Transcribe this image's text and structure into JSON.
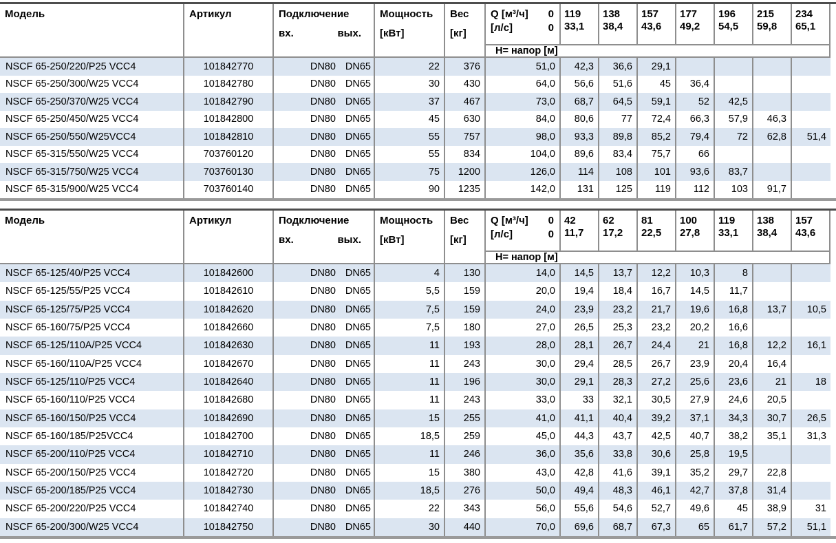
{
  "colors": {
    "row_alternate": "#dbe5f1",
    "grid_line": "#8e8e8e",
    "top_rule": "#4d4d4d",
    "bottom_rule": "#9a9a9a",
    "text": "#000000"
  },
  "tables": [
    {
      "columns": {
        "model": "Модель",
        "article": "Артикул",
        "connection": "Подключение",
        "connection_in": "вх.",
        "connection_out": "вых.",
        "power_line1": "Мощность",
        "power_line2": "[кВт]",
        "weight_line1": "Вес",
        "weight_line2": "[кг]",
        "q_row1_label": "Q [м³/ч]",
        "q_row1_value": "0",
        "q_row2_label": "[л/с]",
        "q_row2_value": "0",
        "head_band": "Н= напор [м]"
      },
      "flow_columns": [
        {
          "m3h": "119",
          "ls": "33,1"
        },
        {
          "m3h": "138",
          "ls": "38,4"
        },
        {
          "m3h": "157",
          "ls": "43,6"
        },
        {
          "m3h": "177",
          "ls": "49,2"
        },
        {
          "m3h": "196",
          "ls": "54,5"
        },
        {
          "m3h": "215",
          "ls": "59,8"
        },
        {
          "m3h": "234",
          "ls": "65,1"
        }
      ],
      "rows": [
        {
          "model": "NSCF 65-250/220/P25 VCC4",
          "article": "101842770",
          "dn_in": "DN80",
          "dn_out": "DN65",
          "power": "22",
          "weight": "376",
          "h_q0": "51,0",
          "h": [
            "42,3",
            "36,6",
            "29,1",
            "",
            "",
            "",
            ""
          ]
        },
        {
          "model": "NSCF 65-250/300/W25 VCC4",
          "article": "101842780",
          "dn_in": "DN80",
          "dn_out": "DN65",
          "power": "30",
          "weight": "430",
          "h_q0": "64,0",
          "h": [
            "56,6",
            "51,6",
            "45",
            "36,4",
            "",
            "",
            ""
          ]
        },
        {
          "model": "NSCF 65-250/370/W25 VCC4",
          "article": "101842790",
          "dn_in": "DN80",
          "dn_out": "DN65",
          "power": "37",
          "weight": "467",
          "h_q0": "73,0",
          "h": [
            "68,7",
            "64,5",
            "59,1",
            "52",
            "42,5",
            "",
            ""
          ]
        },
        {
          "model": "NSCF 65-250/450/W25 VCC4",
          "article": "101842800",
          "dn_in": "DN80",
          "dn_out": "DN65",
          "power": "45",
          "weight": "630",
          "h_q0": "84,0",
          "h": [
            "80,6",
            "77",
            "72,4",
            "66,3",
            "57,9",
            "46,3",
            ""
          ]
        },
        {
          "model": "NSCF 65-250/550/W25VCC4",
          "article": "101842810",
          "dn_in": "DN80",
          "dn_out": "DN65",
          "power": "55",
          "weight": "757",
          "h_q0": "98,0",
          "h": [
            "93,3",
            "89,8",
            "85,2",
            "79,4",
            "72",
            "62,8",
            "51,4"
          ]
        },
        {
          "model": "NSCF 65-315/550/W25 VCC4",
          "article": "703760120",
          "dn_in": "DN80",
          "dn_out": "DN65",
          "power": "55",
          "weight": "834",
          "h_q0": "104,0",
          "h": [
            "89,6",
            "83,4",
            "75,7",
            "66",
            "",
            "",
            ""
          ]
        },
        {
          "model": "NSCF 65-315/750/W25 VCC4",
          "article": "703760130",
          "dn_in": "DN80",
          "dn_out": "DN65",
          "power": "75",
          "weight": "1200",
          "h_q0": "126,0",
          "h": [
            "114",
            "108",
            "101",
            "93,6",
            "83,7",
            "",
            ""
          ]
        },
        {
          "model": "NSCF 65-315/900/W25 VCC4",
          "article": "703760140",
          "dn_in": "DN80",
          "dn_out": "DN65",
          "power": "90",
          "weight": "1235",
          "h_q0": "142,0",
          "h": [
            "131",
            "125",
            "119",
            "112",
            "103",
            "91,7",
            ""
          ]
        }
      ]
    },
    {
      "columns": {
        "model": "Модель",
        "article": "Артикул",
        "connection": "Подключение",
        "connection_in": "вх.",
        "connection_out": "вых.",
        "power_line1": "Мощность",
        "power_line2": "[кВт]",
        "weight_line1": "Вес",
        "weight_line2": "[кг]",
        "q_row1_label": "Q [м³/ч]",
        "q_row1_value": "0",
        "q_row2_label": "[л/с]",
        "q_row2_value": "0",
        "head_band": "Н= напор [м]"
      },
      "flow_columns": [
        {
          "m3h": "42",
          "ls": "11,7"
        },
        {
          "m3h": "62",
          "ls": "17,2"
        },
        {
          "m3h": "81",
          "ls": "22,5"
        },
        {
          "m3h": "100",
          "ls": "27,8"
        },
        {
          "m3h": "119",
          "ls": "33,1"
        },
        {
          "m3h": "138",
          "ls": "38,4"
        },
        {
          "m3h": "157",
          "ls": "43,6"
        }
      ],
      "rows": [
        {
          "model": "NSCF 65-125/40/P25 VCC4",
          "article": "101842600",
          "dn_in": "DN80",
          "dn_out": "DN65",
          "power": "4",
          "weight": "130",
          "h_q0": "14,0",
          "h": [
            "14,5",
            "13,7",
            "12,2",
            "10,3",
            "8",
            "",
            ""
          ]
        },
        {
          "model": "NSCF 65-125/55/P25 VCC4",
          "article": "101842610",
          "dn_in": "DN80",
          "dn_out": "DN65",
          "power": "5,5",
          "weight": "159",
          "h_q0": "20,0",
          "h": [
            "19,4",
            "18,4",
            "16,7",
            "14,5",
            "11,7",
            "",
            ""
          ]
        },
        {
          "model": "NSCF 65-125/75/P25 VCC4",
          "article": "101842620",
          "dn_in": "DN80",
          "dn_out": "DN65",
          "power": "7,5",
          "weight": "159",
          "h_q0": "24,0",
          "h": [
            "23,9",
            "23,2",
            "21,7",
            "19,6",
            "16,8",
            "13,7",
            "10,5"
          ]
        },
        {
          "model": "NSCF 65-160/75/P25 VCC4",
          "article": "101842660",
          "dn_in": "DN80",
          "dn_out": "DN65",
          "power": "7,5",
          "weight": "180",
          "h_q0": "27,0",
          "h": [
            "26,5",
            "25,3",
            "23,2",
            "20,2",
            "16,6",
            "",
            ""
          ]
        },
        {
          "model": "NSCF 65-125/110A/P25 VCC4",
          "article": "101842630",
          "dn_in": "DN80",
          "dn_out": "DN65",
          "power": "11",
          "weight": "193",
          "h_q0": "28,0",
          "h": [
            "28,1",
            "26,7",
            "24,4",
            "21",
            "16,8",
            "12,2",
            "16,1"
          ]
        },
        {
          "model": "NSCF 65-160/110A/P25 VCC4",
          "article": "101842670",
          "dn_in": "DN80",
          "dn_out": "DN65",
          "power": "11",
          "weight": "243",
          "h_q0": "30,0",
          "h": [
            "29,4",
            "28,5",
            "26,7",
            "23,9",
            "20,4",
            "16,4",
            ""
          ]
        },
        {
          "model": "NSCF 65-125/110/P25 VCC4",
          "article": "101842640",
          "dn_in": "DN80",
          "dn_out": "DN65",
          "power": "11",
          "weight": "196",
          "h_q0": "30,0",
          "h": [
            "29,1",
            "28,3",
            "27,2",
            "25,6",
            "23,6",
            "21",
            "18"
          ]
        },
        {
          "model": "NSCF 65-160/110/P25 VCC4",
          "article": "101842680",
          "dn_in": "DN80",
          "dn_out": "DN65",
          "power": "11",
          "weight": "243",
          "h_q0": "33,0",
          "h": [
            "33",
            "32,1",
            "30,5",
            "27,9",
            "24,6",
            "20,5",
            ""
          ]
        },
        {
          "model": "NSCF 65-160/150/P25 VCC4",
          "article": "101842690",
          "dn_in": "DN80",
          "dn_out": "DN65",
          "power": "15",
          "weight": "255",
          "h_q0": "41,0",
          "h": [
            "41,1",
            "40,4",
            "39,2",
            "37,1",
            "34,3",
            "30,7",
            "26,5"
          ]
        },
        {
          "model": "NSCF 65-160/185/P25VCC4",
          "article": "101842700",
          "dn_in": "DN80",
          "dn_out": "DN65",
          "power": "18,5",
          "weight": "259",
          "h_q0": "45,0",
          "h": [
            "44,3",
            "43,7",
            "42,5",
            "40,7",
            "38,2",
            "35,1",
            "31,3"
          ]
        },
        {
          "model": "NSCF 65-200/110/P25 VCC4",
          "article": "101842710",
          "dn_in": "DN80",
          "dn_out": "DN65",
          "power": "11",
          "weight": "246",
          "h_q0": "36,0",
          "h": [
            "35,6",
            "33,8",
            "30,6",
            "25,8",
            "19,5",
            "",
            ""
          ]
        },
        {
          "model": "NSCF 65-200/150/P25 VCC4",
          "article": "101842720",
          "dn_in": "DN80",
          "dn_out": "DN65",
          "power": "15",
          "weight": "380",
          "h_q0": "43,0",
          "h": [
            "42,8",
            "41,6",
            "39,1",
            "35,2",
            "29,7",
            "22,8",
            ""
          ]
        },
        {
          "model": "NSCF 65-200/185/P25 VCC4",
          "article": "101842730",
          "dn_in": "DN80",
          "dn_out": "DN65",
          "power": "18,5",
          "weight": "276",
          "h_q0": "50,0",
          "h": [
            "49,4",
            "48,3",
            "46,1",
            "42,7",
            "37,8",
            "31,4",
            ""
          ]
        },
        {
          "model": "NSCF 65-200/220/P25 VCC4",
          "article": "101842740",
          "dn_in": "DN80",
          "dn_out": "DN65",
          "power": "22",
          "weight": "343",
          "h_q0": "56,0",
          "h": [
            "55,6",
            "54,6",
            "52,7",
            "49,6",
            "45",
            "38,9",
            "31"
          ]
        },
        {
          "model": "NSCF 65-200/300/W25 VCC4",
          "article": "101842750",
          "dn_in": "DN80",
          "dn_out": "DN65",
          "power": "30",
          "weight": "440",
          "h_q0": "70,0",
          "h": [
            "69,6",
            "68,7",
            "67,3",
            "65",
            "61,7",
            "57,2",
            "51,1"
          ]
        }
      ]
    }
  ]
}
